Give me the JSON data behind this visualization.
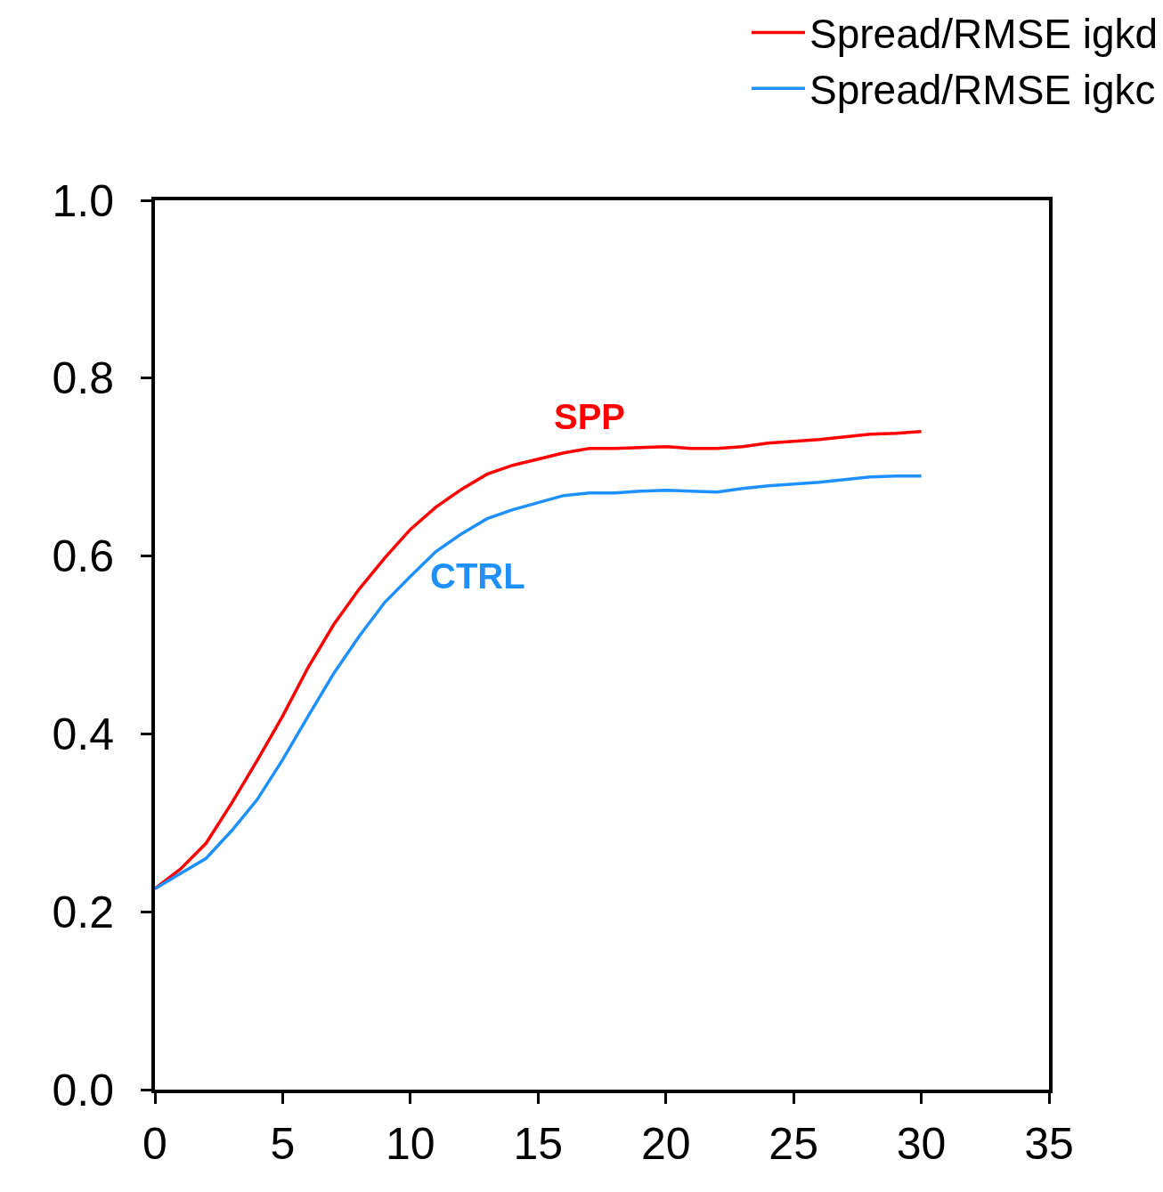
{
  "chart_data": {
    "type": "line",
    "x": [
      0,
      1,
      2,
      3,
      4,
      5,
      6,
      7,
      8,
      9,
      10,
      11,
      12,
      13,
      14,
      15,
      16,
      17,
      18,
      19,
      20,
      21,
      22,
      23,
      24,
      25,
      26,
      27,
      28,
      29,
      30
    ],
    "series": [
      {
        "name": "Spread/RMSE igkd",
        "color": "#ff0000",
        "values": [
          0.226,
          0.248,
          0.277,
          0.322,
          0.37,
          0.42,
          0.475,
          0.523,
          0.563,
          0.598,
          0.63,
          0.655,
          0.675,
          0.692,
          0.702,
          0.709,
          0.716,
          0.721,
          0.721,
          0.722,
          0.723,
          0.721,
          0.721,
          0.723,
          0.727,
          0.729,
          0.731,
          0.734,
          0.737,
          0.738,
          0.74
        ]
      },
      {
        "name": "Spread/RMSE igkc",
        "color": "#1e90ff",
        "values": [
          0.226,
          0.243,
          0.26,
          0.291,
          0.326,
          0.371,
          0.42,
          0.468,
          0.51,
          0.548,
          0.577,
          0.605,
          0.625,
          0.642,
          0.652,
          0.66,
          0.668,
          0.671,
          0.671,
          0.673,
          0.674,
          0.673,
          0.672,
          0.676,
          0.679,
          0.681,
          0.683,
          0.686,
          0.689,
          0.69,
          0.69
        ]
      }
    ],
    "annotations": [
      "SPP",
      "CTRL"
    ],
    "xlim": [
      0,
      35
    ],
    "xticks": [
      0,
      5,
      10,
      15,
      20,
      25,
      30,
      35
    ],
    "ylim": [
      0,
      1
    ],
    "yticks": [
      {
        "value": 0,
        "label": "0.0"
      },
      0.2,
      0.4,
      0.6,
      0.8,
      {
        "value": 1,
        "label": "1.0"
      }
    ],
    "grid": false,
    "legend": "top right",
    "marker": "none",
    "line_style": "solid"
  }
}
